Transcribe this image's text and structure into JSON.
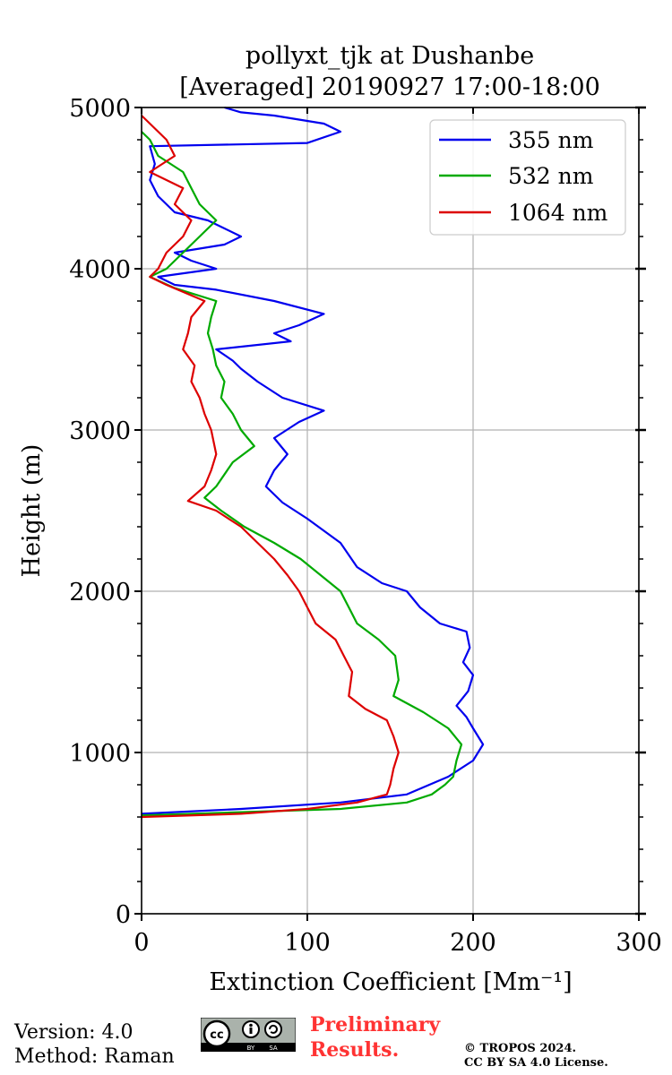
{
  "chart_data": {
    "type": "line",
    "title": "pollyxt_tjk at Dushanbe",
    "subtitle": "[Averaged] 20190927 17:00-18:00",
    "xlabel": "Extinction Coefficient [Mm⁻¹]",
    "ylabel": "Height (m)",
    "xlim": [
      0,
      300
    ],
    "ylim": [
      0,
      5000
    ],
    "xticks": [
      "0",
      "100",
      "200",
      "300"
    ],
    "yticks": [
      "0",
      "1000",
      "2000",
      "3000",
      "4000",
      "5000"
    ],
    "grid": true,
    "legend_position": "top-right",
    "series": [
      {
        "name": "355 nm",
        "color": "#0000ee",
        "points": [
          [
            0,
            620
          ],
          [
            60,
            650
          ],
          [
            120,
            690
          ],
          [
            160,
            740
          ],
          [
            185,
            850
          ],
          [
            200,
            950
          ],
          [
            206,
            1050
          ],
          [
            200,
            1150
          ],
          [
            196,
            1220
          ],
          [
            190,
            1290
          ],
          [
            197,
            1380
          ],
          [
            200,
            1480
          ],
          [
            194,
            1560
          ],
          [
            198,
            1650
          ],
          [
            196,
            1750
          ],
          [
            180,
            1800
          ],
          [
            168,
            1900
          ],
          [
            160,
            2000
          ],
          [
            145,
            2050
          ],
          [
            130,
            2150
          ],
          [
            120,
            2300
          ],
          [
            100,
            2450
          ],
          [
            85,
            2550
          ],
          [
            75,
            2650
          ],
          [
            80,
            2750
          ],
          [
            88,
            2850
          ],
          [
            80,
            2950
          ],
          [
            95,
            3050
          ],
          [
            110,
            3120
          ],
          [
            85,
            3200
          ],
          [
            70,
            3300
          ],
          [
            60,
            3380
          ],
          [
            55,
            3430
          ],
          [
            45,
            3500
          ],
          [
            90,
            3550
          ],
          [
            80,
            3600
          ],
          [
            95,
            3650
          ],
          [
            110,
            3720
          ],
          [
            80,
            3800
          ],
          [
            45,
            3870
          ],
          [
            20,
            3900
          ],
          [
            10,
            3950
          ],
          [
            45,
            4000
          ],
          [
            30,
            4050
          ],
          [
            20,
            4100
          ],
          [
            50,
            4150
          ],
          [
            60,
            4200
          ],
          [
            40,
            4300
          ],
          [
            20,
            4350
          ],
          [
            10,
            4450
          ],
          [
            5,
            4550
          ],
          [
            8,
            4650
          ],
          [
            5,
            4760
          ],
          [
            100,
            4780
          ],
          [
            120,
            4850
          ],
          [
            110,
            4900
          ],
          [
            80,
            4950
          ],
          [
            60,
            4970
          ],
          [
            50,
            5000
          ]
        ]
      },
      {
        "name": "532 nm",
        "color": "#00aa00",
        "points": [
          [
            0,
            610
          ],
          [
            60,
            630
          ],
          [
            120,
            650
          ],
          [
            160,
            690
          ],
          [
            175,
            740
          ],
          [
            183,
            800
          ],
          [
            188,
            850
          ],
          [
            190,
            950
          ],
          [
            193,
            1050
          ],
          [
            185,
            1150
          ],
          [
            170,
            1250
          ],
          [
            152,
            1350
          ],
          [
            155,
            1450
          ],
          [
            153,
            1600
          ],
          [
            143,
            1700
          ],
          [
            130,
            1800
          ],
          [
            125,
            1900
          ],
          [
            120,
            2000
          ],
          [
            108,
            2100
          ],
          [
            96,
            2200
          ],
          [
            80,
            2300
          ],
          [
            62,
            2400
          ],
          [
            48,
            2500
          ],
          [
            38,
            2580
          ],
          [
            45,
            2650
          ],
          [
            55,
            2800
          ],
          [
            68,
            2900
          ],
          [
            60,
            3000
          ],
          [
            55,
            3100
          ],
          [
            48,
            3200
          ],
          [
            50,
            3300
          ],
          [
            45,
            3400
          ],
          [
            43,
            3500
          ],
          [
            40,
            3600
          ],
          [
            42,
            3700
          ],
          [
            45,
            3800
          ],
          [
            20,
            3880
          ],
          [
            5,
            3950
          ],
          [
            15,
            4000
          ],
          [
            25,
            4100
          ],
          [
            35,
            4200
          ],
          [
            45,
            4300
          ],
          [
            35,
            4400
          ],
          [
            30,
            4500
          ],
          [
            25,
            4600
          ],
          [
            10,
            4700
          ],
          [
            5,
            4800
          ],
          [
            0,
            4850
          ]
        ]
      },
      {
        "name": "1064 nm",
        "color": "#dd0000",
        "points": [
          [
            0,
            600
          ],
          [
            60,
            620
          ],
          [
            100,
            650
          ],
          [
            130,
            690
          ],
          [
            148,
            740
          ],
          [
            150,
            800
          ],
          [
            152,
            900
          ],
          [
            155,
            1000
          ],
          [
            152,
            1100
          ],
          [
            148,
            1200
          ],
          [
            135,
            1270
          ],
          [
            125,
            1350
          ],
          [
            127,
            1500
          ],
          [
            122,
            1600
          ],
          [
            117,
            1700
          ],
          [
            105,
            1800
          ],
          [
            100,
            1900
          ],
          [
            95,
            2000
          ],
          [
            88,
            2100
          ],
          [
            80,
            2200
          ],
          [
            70,
            2300
          ],
          [
            60,
            2400
          ],
          [
            45,
            2500
          ],
          [
            28,
            2560
          ],
          [
            38,
            2650
          ],
          [
            42,
            2750
          ],
          [
            45,
            2850
          ],
          [
            42,
            3000
          ],
          [
            38,
            3100
          ],
          [
            35,
            3200
          ],
          [
            30,
            3300
          ],
          [
            32,
            3400
          ],
          [
            25,
            3500
          ],
          [
            28,
            3600
          ],
          [
            30,
            3700
          ],
          [
            38,
            3800
          ],
          [
            15,
            3900
          ],
          [
            5,
            3950
          ],
          [
            10,
            4000
          ],
          [
            15,
            4100
          ],
          [
            25,
            4200
          ],
          [
            30,
            4300
          ],
          [
            20,
            4400
          ],
          [
            25,
            4500
          ],
          [
            5,
            4600
          ],
          [
            20,
            4700
          ],
          [
            15,
            4800
          ],
          [
            5,
            4900
          ],
          [
            0,
            4950
          ]
        ]
      }
    ]
  },
  "footer": {
    "version": "Version: 4.0",
    "method": "Method: Raman",
    "preliminary_line1": "Preliminary",
    "preliminary_line2": "Results.",
    "copyright_line1": "© TROPOS 2024.",
    "copyright_line2": "CC BY SA 4.0 License.",
    "badge_cc": "cc",
    "badge_by": "BY",
    "badge_sa": "SA"
  }
}
